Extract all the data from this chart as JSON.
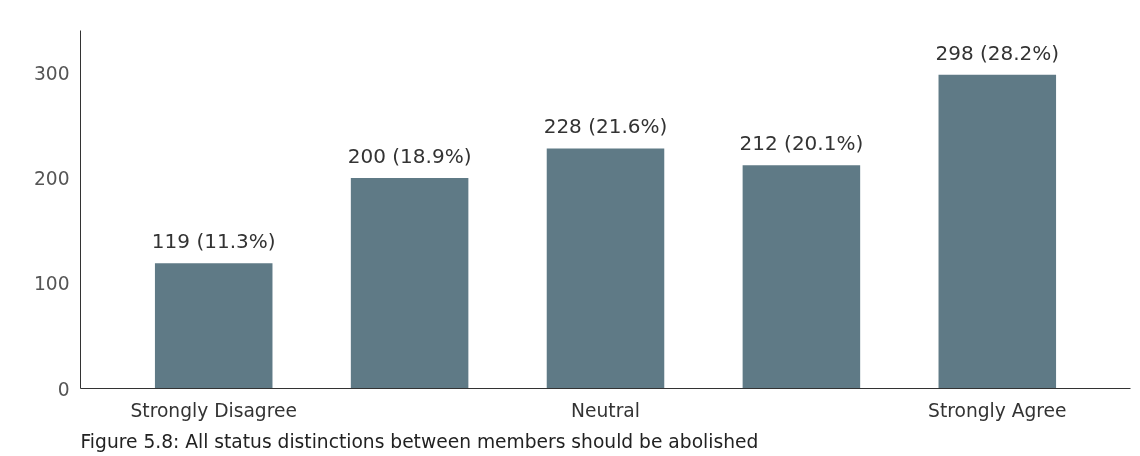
{
  "chart_data": {
    "type": "bar",
    "categories": [
      "Strongly Disagree",
      null,
      "Neutral",
      null,
      "Strongly Agree"
    ],
    "values": [
      119,
      200,
      228,
      212,
      298
    ],
    "value_labels": [
      "119 (11.3%)",
      "200 (18.9%)",
      "228 (21.6%)",
      "212 (20.1%)",
      "298 (28.2%)"
    ],
    "color": "#5f7a86",
    "ylim": [
      0,
      340
    ],
    "yticks": [
      0,
      100,
      200,
      300
    ],
    "grid": false,
    "annotations": [
      "Figure 5.8: All status distinctions between members should be abolished"
    ]
  }
}
